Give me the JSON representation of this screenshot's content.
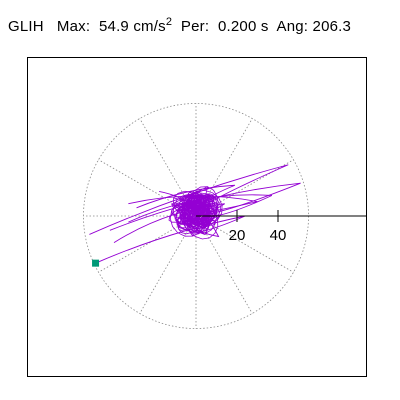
{
  "header": {
    "station": "GLIH",
    "max_label": "Max:",
    "max_value": "54.9",
    "max_unit": "cm/s",
    "max_unit_exp": "2",
    "per_label": "Per:",
    "per_value": "0.200 s",
    "ang_label": "Ang:",
    "ang_value": "206.3"
  },
  "colors": {
    "trace": "#9400d3",
    "marker": "#009977",
    "grid": "#888888",
    "frame": "#000000"
  },
  "chart_data": {
    "type": "scatter",
    "subtype": "polar particle-motion (hodogram)",
    "units": "cm/s^2",
    "rings": [
      20,
      40
    ],
    "ring_labels": [
      "20",
      "40"
    ],
    "max_ring": 54.9,
    "spokes_deg": [
      0,
      30,
      60,
      90,
      120,
      150,
      180,
      210,
      240,
      270,
      300,
      330
    ],
    "axis_direction_deg": 0,
    "endpoint": {
      "x": -49,
      "y": -23
    },
    "trace": {
      "cluster": {
        "center": [
          0,
          1
        ],
        "radius": 8,
        "loops": 60
      },
      "long_loops": [
        {
          "x1": -52,
          "y1": -9,
          "x2": 45,
          "y2": 25
        },
        {
          "x1": -42,
          "y1": -7,
          "x2": 51,
          "y2": 16
        },
        {
          "x1": -33,
          "y1": -3,
          "x2": 37,
          "y2": 10
        },
        {
          "x1": -29,
          "y1": 4,
          "x2": 19,
          "y2": 15
        },
        {
          "x1": -33,
          "y1": 6,
          "x2": 30,
          "y2": 7
        },
        {
          "x1": -18,
          "y1": 12,
          "x2": 11,
          "y2": -10
        },
        {
          "x1": -49,
          "y1": -23,
          "x2": 24,
          "y2": 0
        },
        {
          "x1": -40,
          "y1": -13,
          "x2": 14,
          "y2": 6
        }
      ]
    }
  }
}
